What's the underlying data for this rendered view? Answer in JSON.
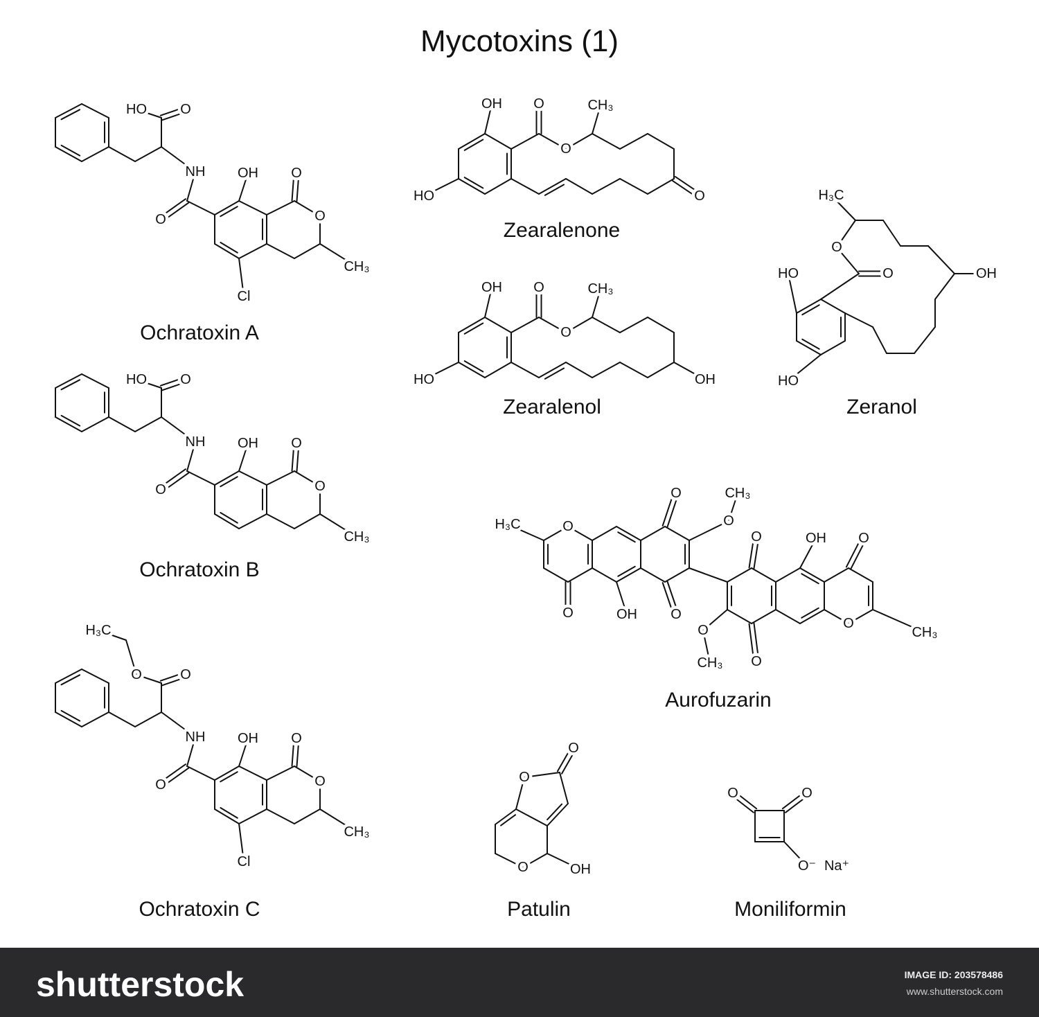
{
  "title": "Mycotoxins (1)",
  "molecules": [
    {
      "name": "Ochratoxin A",
      "labels": [
        "HO",
        "O",
        "NH",
        "O",
        "OH",
        "O",
        "O",
        "CH₃",
        "Cl"
      ]
    },
    {
      "name": "Ochratoxin B",
      "labels": [
        "HO",
        "O",
        "NH",
        "O",
        "OH",
        "O",
        "O",
        "CH₃"
      ]
    },
    {
      "name": "Ochratoxin C",
      "labels": [
        "O",
        "O",
        "NH",
        "O",
        "OH",
        "O",
        "O",
        "CH₃",
        "Cl",
        "H₃C"
      ]
    },
    {
      "name": "Zearalenone",
      "labels": [
        "OH",
        "HO",
        "O",
        "O",
        "CH₃",
        "O"
      ]
    },
    {
      "name": "Zearalenol",
      "labels": [
        "OH",
        "HO",
        "O",
        "O",
        "CH₃",
        "OH"
      ]
    },
    {
      "name": "Zeranol",
      "labels": [
        "HO",
        "HO",
        "O",
        "O",
        "H₃C",
        "OH"
      ]
    },
    {
      "name": "Aurofuzarin",
      "labels": [
        "O",
        "O",
        "H₃C",
        "OH",
        "O",
        "O",
        "O",
        "CH₃",
        "O",
        "O",
        "O",
        "CH₃",
        "OH",
        "O",
        "O",
        "CH₃"
      ]
    },
    {
      "name": "Patulin",
      "labels": [
        "O",
        "O",
        "O",
        "OH"
      ]
    },
    {
      "name": "Moniliformin",
      "labels": [
        "O",
        "O",
        "O⁻",
        "Na⁺"
      ]
    }
  ],
  "footer": {
    "brand": "shutterstock",
    "image_id": "IMAGE ID: 203578486",
    "url": "www.shutterstock.com"
  }
}
